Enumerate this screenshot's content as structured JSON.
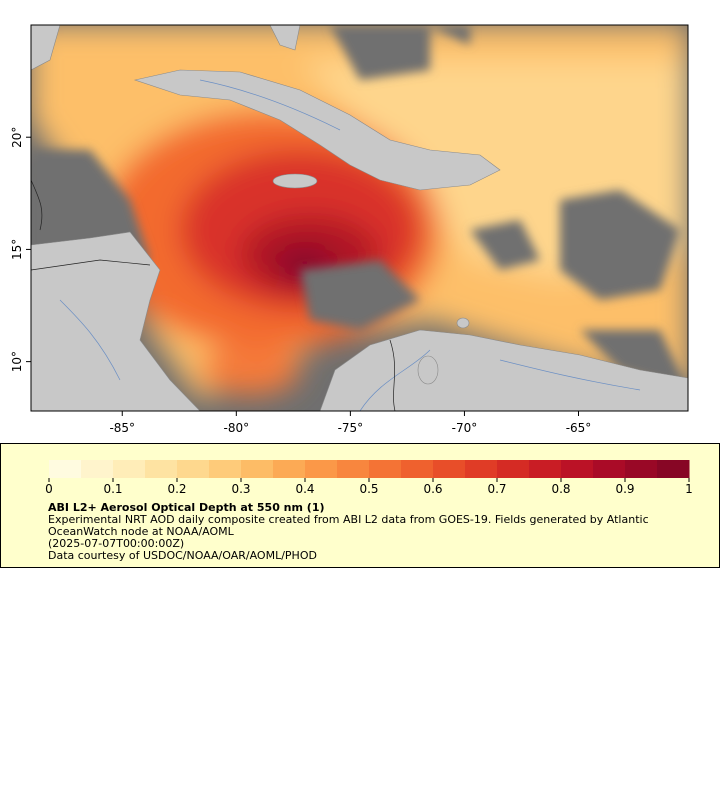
{
  "map": {
    "xlim": [
      -89,
      -60.2
    ],
    "ylim": [
      7.8,
      25
    ],
    "xticks": [
      {
        "value": -85,
        "label": "-85°"
      },
      {
        "value": -80,
        "label": "-80°"
      },
      {
        "value": -75,
        "label": "-75°"
      },
      {
        "value": -70,
        "label": "-70°"
      },
      {
        "value": -65,
        "label": "-65°"
      }
    ],
    "yticks": [
      {
        "value": 10,
        "label": "10°"
      },
      {
        "value": 15,
        "label": "15°"
      },
      {
        "value": 20,
        "label": "20°"
      }
    ]
  },
  "colorbar": {
    "range": [
      0,
      1
    ],
    "ticks": [
      0,
      0.1,
      0.2,
      0.3,
      0.4,
      0.5,
      0.6,
      0.7,
      0.8,
      0.9,
      1
    ],
    "colors": [
      "#fffbe0",
      "#fff4cc",
      "#ffedb8",
      "#fee3a2",
      "#fed88e",
      "#fecb7a",
      "#fdbc66",
      "#fcaa55",
      "#fb9848",
      "#f8863e",
      "#f47335",
      "#ef612e",
      "#e84e29",
      "#e03c26",
      "#d52b24",
      "#c91d25",
      "#bb1226",
      "#aa0b27",
      "#990826",
      "#870625"
    ]
  },
  "legend": {
    "title": "ABI L2+ Aerosol Optical Depth at 550 nm (1)",
    "description": "Experimental NRT AOD daily composite created from ABI L2 data from GOES-19. Fields generated by Atlantic OceanWatch node at NOAA/AOML",
    "time": "(2025-07-07T00:00:00Z)",
    "credit": "Data courtesy of USDOC/NOAA/OAR/AOML/PHOD"
  }
}
